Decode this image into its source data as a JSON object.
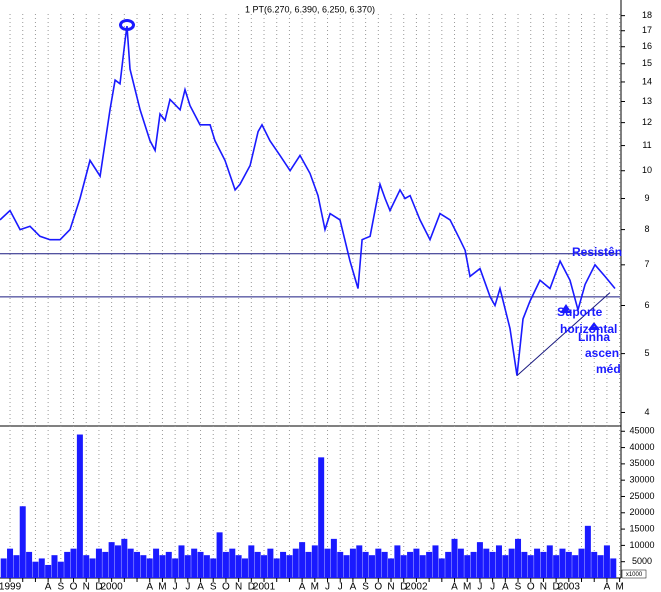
{
  "chart_data": {
    "type": "stock",
    "title": "1 PT(6.270, 6.390, 6.250, 6.370)",
    "categories": [
      "1999",
      null,
      null,
      "A",
      "S",
      "O",
      "N",
      "D",
      "2000",
      null,
      null,
      "A",
      "M",
      "J",
      "J",
      "A",
      "S",
      "O",
      "N",
      "D",
      "2001",
      null,
      null,
      "A",
      "M",
      "J",
      "J",
      "A",
      "S",
      "O",
      "N",
      "D",
      "2002",
      null,
      null,
      "A",
      "M",
      "J",
      "J",
      "A",
      "S",
      "O",
      "N",
      "D",
      "2003",
      null,
      null,
      "A",
      "M"
    ],
    "xlim": [
      -0.79,
      48.03
    ],
    "ylim": [
      3.8,
      19.1
    ],
    "log_scale": true,
    "yticks": [
      4,
      5,
      6,
      7,
      8,
      9,
      10,
      11,
      12,
      13,
      14,
      15,
      16,
      17,
      18
    ],
    "series": [
      {
        "color": "#1a1aff",
        "x": [
          -0.79,
          0,
          0.79,
          1.57,
          2.36,
          3.15,
          3.94,
          4.72,
          5.51,
          6.3,
          7.09,
          7.87,
          8.27,
          8.66,
          9.06,
          9.21,
          9.45,
          10.24,
          11.02,
          11.42,
          11.81,
          12.2,
          12.6,
          13.39,
          13.78,
          14.17,
          14.96,
          15.75,
          16.14,
          16.93,
          17.72,
          18.11,
          18.9,
          19.53,
          19.84,
          20.47,
          21.26,
          22.05,
          22.83,
          23.62,
          24.25,
          24.8,
          25.2,
          25.98,
          26.77,
          27.4,
          27.72,
          28.35,
          29.13,
          29.53,
          29.92,
          30.71,
          31.1,
          31.5,
          32.28,
          33.07,
          33.86,
          34.65,
          35.43,
          35.83,
          36.22,
          37.01,
          37.8,
          38.19,
          38.58,
          39.37,
          39.92,
          40.39,
          40.94,
          41.73,
          42.52,
          43.31,
          44.09,
          44.72,
          45.28,
          46.06,
          46.85,
          47.64
        ],
        "values": [
          8.3,
          8.6,
          8.0,
          8.1,
          7.8,
          7.7,
          7.7,
          8.0,
          9.0,
          10.4,
          9.8,
          12.6,
          14.1,
          13.9,
          16.4,
          17.3,
          14.7,
          12.6,
          11.2,
          10.8,
          12.4,
          12.1,
          13.1,
          12.6,
          13.6,
          12.8,
          11.9,
          11.9,
          11.2,
          10.4,
          9.3,
          9.5,
          10.2,
          11.6,
          11.9,
          11.2,
          10.6,
          10.0,
          10.6,
          9.9,
          9.1,
          8.0,
          8.5,
          8.3,
          7.1,
          6.4,
          7.7,
          7.8,
          9.5,
          9.0,
          8.6,
          9.3,
          9.0,
          9.1,
          8.3,
          7.7,
          8.5,
          8.3,
          7.7,
          7.4,
          6.7,
          6.9,
          6.2,
          6.0,
          6.4,
          5.5,
          4.6,
          5.7,
          6.1,
          6.6,
          6.4,
          7.1,
          6.6,
          5.9,
          6.5,
          7.0,
          6.7,
          6.4
        ]
      }
    ],
    "hlines": [
      7.3,
      6.2
    ],
    "trendline": {
      "x": [
        39.92,
        47.24
      ],
      "values": [
        4.6,
        6.3
      ]
    },
    "annotations": [
      "Resistên",
      "Suporte",
      "horizontal",
      "Linha",
      "ascen",
      "méd"
    ],
    "volume": {
      "color": "#1a1aff",
      "ylim": [
        0,
        46000
      ],
      "yticks": [
        5000,
        10000,
        15000,
        20000,
        25000,
        30000,
        35000,
        40000,
        45000
      ],
      "unit_label": "x1000",
      "x": [
        -0.5,
        0,
        0.5,
        1,
        1.5,
        2,
        2.5,
        3,
        3.5,
        4,
        4.5,
        5,
        5.5,
        6,
        6.5,
        7,
        7.5,
        8,
        8.5,
        9,
        9.5,
        10,
        10.5,
        11,
        11.5,
        12,
        12.5,
        13,
        13.5,
        14,
        14.5,
        15,
        15.5,
        16,
        16.5,
        17,
        17.5,
        18,
        18.5,
        19,
        19.5,
        20,
        20.5,
        21,
        21.5,
        22,
        22.5,
        23,
        23.5,
        24,
        24.5,
        25,
        25.5,
        26,
        26.5,
        27,
        27.5,
        28,
        28.5,
        29,
        29.5,
        30,
        30.5,
        31,
        31.5,
        32,
        32.5,
        33,
        33.5,
        34,
        34.5,
        35,
        35.5,
        36,
        36.5,
        37,
        37.5,
        38,
        38.5,
        39,
        39.5,
        40,
        40.5,
        41,
        41.5,
        42,
        42.5,
        43,
        43.5,
        44,
        44.5,
        45,
        45.5,
        46,
        46.5,
        47,
        47.5
      ],
      "values": [
        6000,
        9000,
        7000,
        22000,
        8000,
        5000,
        6000,
        4000,
        7000,
        5000,
        8000,
        9000,
        44000,
        7000,
        6000,
        9000,
        8000,
        11000,
        10000,
        12000,
        9000,
        8000,
        7000,
        6000,
        9000,
        7000,
        8000,
        6000,
        10000,
        7000,
        9000,
        8000,
        7000,
        6000,
        14000,
        8000,
        9000,
        7000,
        6000,
        10000,
        8000,
        7000,
        9000,
        6000,
        8000,
        7000,
        9000,
        11000,
        8000,
        10000,
        37000,
        9000,
        12000,
        8000,
        7000,
        9000,
        10000,
        8000,
        7000,
        9000,
        8000,
        6000,
        10000,
        7000,
        8000,
        9000,
        7000,
        8000,
        10000,
        6000,
        8000,
        12000,
        9000,
        7000,
        8000,
        11000,
        9000,
        8000,
        10000,
        7000,
        9000,
        12000,
        8000,
        7000,
        9000,
        8000,
        10000,
        7000,
        9000,
        8000,
        7000,
        9000,
        16000,
        8000,
        7000,
        10000,
        6000
      ]
    }
  }
}
